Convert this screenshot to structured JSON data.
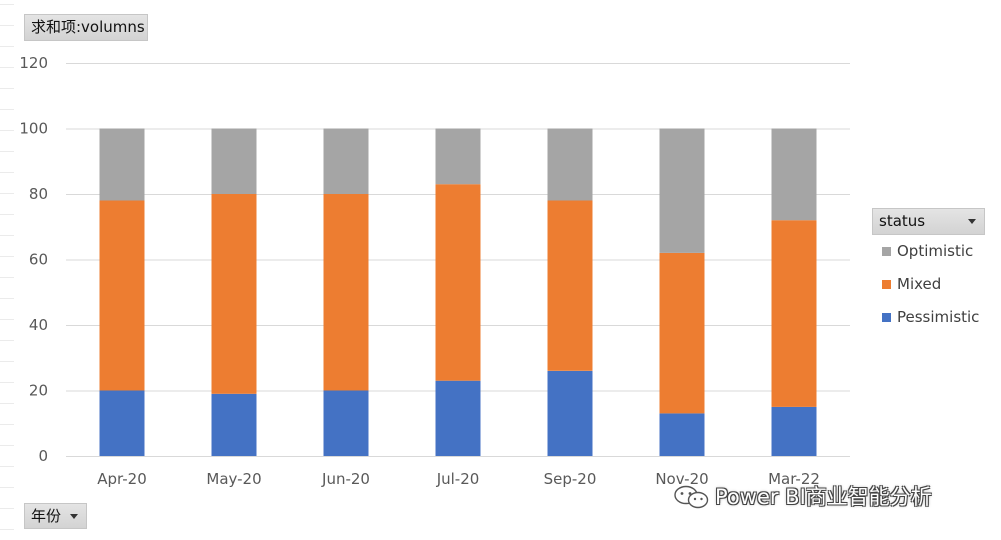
{
  "field_buttons": {
    "values": "求和项:volumns",
    "axis": "年份",
    "legend": "status"
  },
  "watermark": {
    "text": "Power BI商业智能分析",
    "icon": "wechat-icon"
  },
  "colors": {
    "Pessimistic": "#4472c4",
    "Mixed": "#ed7d31",
    "Optimistic": "#a5a5a5",
    "gridline": "#d9d9d9",
    "tick_text": "#595959"
  },
  "chart_data": {
    "type": "bar",
    "stacked": true,
    "categories": [
      "Apr-20",
      "May-20",
      "Jun-20",
      "Jul-20",
      "Sep-20",
      "Nov-20",
      "Mar-22"
    ],
    "series": [
      {
        "name": "Pessimistic",
        "values": [
          20,
          19,
          20,
          23,
          26,
          13,
          15
        ]
      },
      {
        "name": "Mixed",
        "values": [
          58,
          61,
          60,
          60,
          52,
          49,
          57
        ]
      },
      {
        "name": "Optimistic",
        "values": [
          22,
          20,
          20,
          17,
          22,
          38,
          28
        ]
      }
    ],
    "ylim": [
      0,
      120
    ],
    "yticks": [
      0,
      20,
      40,
      60,
      80,
      100,
      120
    ],
    "grid": true,
    "legend_title": "status",
    "legend_order": [
      "Optimistic",
      "Mixed",
      "Pessimistic"
    ],
    "legend_position": "right"
  }
}
